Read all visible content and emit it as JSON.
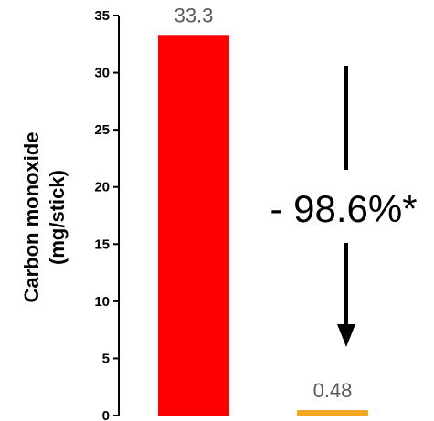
{
  "chart_data": {
    "type": "bar",
    "categories": [
      "",
      ""
    ],
    "values": [
      33.3,
      0.48
    ],
    "data_labels": [
      "33.3",
      "0.48"
    ],
    "bar_colors": [
      "#ff0000",
      "#f5a623"
    ],
    "label_color": "#595959",
    "ylabel_line1": "Carbon monoxide",
    "ylabel_line2": "(mg/stick)",
    "ylim": [
      0,
      35
    ],
    "yticks": [
      0,
      5,
      10,
      15,
      20,
      25,
      30,
      35
    ],
    "ytick_labels": [
      "0",
      "5",
      "10",
      "15",
      "20",
      "25",
      "30",
      "35"
    ],
    "grid": false,
    "annotation": {
      "text": "- 98.6%*",
      "arrow": "down",
      "arrow_icon": "down-arrow-icon"
    }
  }
}
